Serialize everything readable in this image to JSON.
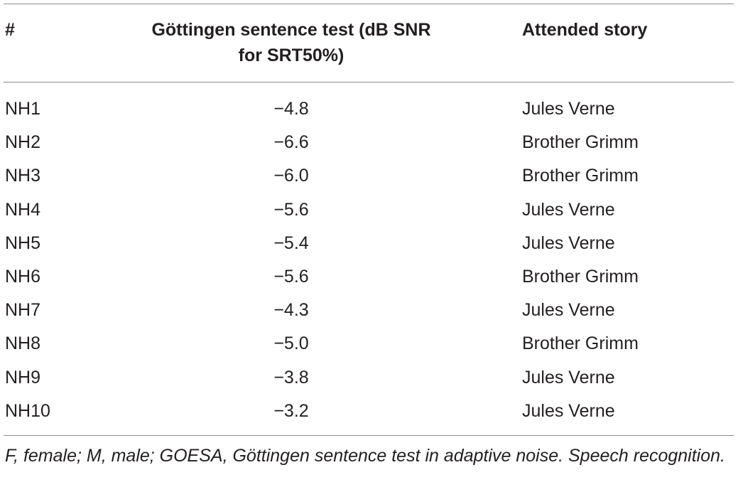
{
  "table": {
    "header": [
      "#",
      "Göttingen sentence test (dB SNR for SRT50%)",
      "Attended story"
    ],
    "rows": [
      [
        "NH1",
        "−4.8",
        "Jules Verne"
      ],
      [
        "NH2",
        "−6.6",
        "Brother Grimm"
      ],
      [
        "NH3",
        "−6.0",
        "Brother Grimm"
      ],
      [
        "NH4",
        "−5.6",
        "Jules Verne"
      ],
      [
        "NH5",
        "−5.4",
        "Jules Verne"
      ],
      [
        "NH6",
        "−5.6",
        "Brother Grimm"
      ],
      [
        "NH7",
        "−4.3",
        "Jules Verne"
      ],
      [
        "NH8",
        "−5.0",
        "Brother Grimm"
      ],
      [
        "NH9",
        "−3.8",
        "Jules Verne"
      ],
      [
        "NH10",
        "−3.2",
        "Jules Verne"
      ]
    ]
  },
  "footnote": "F, female; M, male; GOESA, Göttingen sentence test in adaptive noise. Speech recognition."
}
